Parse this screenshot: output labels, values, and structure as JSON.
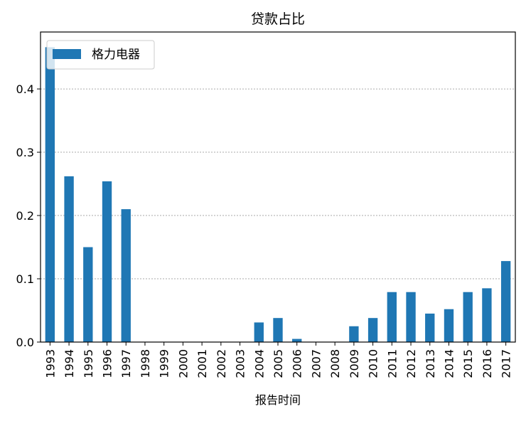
{
  "chart_data": {
    "type": "bar",
    "title": "贷款占比",
    "xlabel": "报告时间",
    "ylabel": "",
    "categories": [
      "1993",
      "1994",
      "1995",
      "1996",
      "1997",
      "1998",
      "1999",
      "2000",
      "2001",
      "2002",
      "2003",
      "2004",
      "2005",
      "2006",
      "2007",
      "2008",
      "2009",
      "2010",
      "2011",
      "2012",
      "2013",
      "2014",
      "2015",
      "2016",
      "2017"
    ],
    "series": [
      {
        "name": "格力电器",
        "color": "#1f77b4",
        "values": [
          0.466,
          0.262,
          0.15,
          0.254,
          0.21,
          0,
          0,
          0,
          0,
          0,
          0,
          0.031,
          0.038,
          0.005,
          0,
          0,
          0.025,
          0.038,
          0.079,
          0.079,
          0.045,
          0.052,
          0.079,
          0.085,
          0.128
        ]
      }
    ],
    "ylim": [
      0,
      0.49
    ],
    "yticks": [
      "0.0",
      "0.1",
      "0.2",
      "0.3",
      "0.4"
    ],
    "grid": "y-dotted",
    "legend": "top-left"
  }
}
